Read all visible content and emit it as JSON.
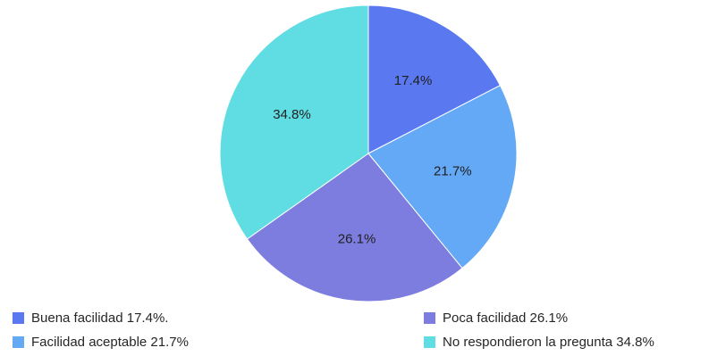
{
  "chart_data": {
    "type": "pie",
    "title": "",
    "start_angle": "12 o'clock",
    "direction": "clockwise",
    "slices": [
      {
        "label": "Buena facilidad 17.4%.",
        "value": 17.4,
        "data_label": "17.4%",
        "color": "#5a78f0"
      },
      {
        "label": "Facilidad aceptable 21.7%",
        "value": 21.7,
        "data_label": "21.7%",
        "color": "#64a9f5"
      },
      {
        "label": "Poca facilidad 26.1%",
        "value": 26.1,
        "data_label": "26.1%",
        "color": "#7d7ddf"
      },
      {
        "label": "No respondieron la pregunta 34.8%",
        "value": 34.8,
        "data_label": "34.8%",
        "color": "#5fdde3"
      }
    ],
    "legend": {
      "placement": "bottom",
      "entries": [
        "Buena facilidad 17.4%.",
        "Facilidad aceptable 21.7%",
        "Poca facilidad 26.1%",
        "No respondieron la pregunta 34.8%"
      ]
    }
  }
}
